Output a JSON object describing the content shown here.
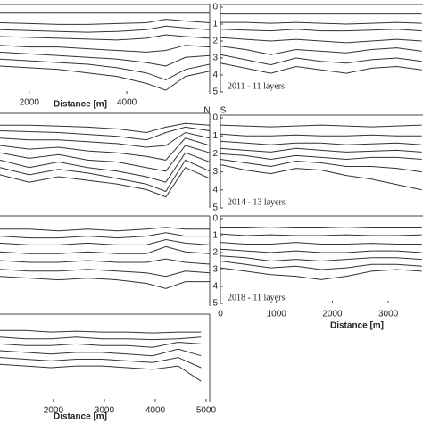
{
  "orientation_labels": [
    "N",
    "S"
  ],
  "chart_data": [
    {
      "type": "line",
      "color": "#333",
      "xlim": [
        1400,
        5700
      ],
      "ylim": [
        0,
        5
      ],
      "y_inverted": true,
      "xticks": [
        2000,
        4000
      ],
      "xlabel": "Distance [m]",
      "x": [
        1400,
        2000,
        2600,
        3200,
        3800,
        4400,
        4800,
        5200,
        5700
      ],
      "series": [
        {
          "values": [
            0.35,
            0.35,
            0.35,
            0.35,
            0.35,
            0.35,
            0.35,
            0.35,
            0.35
          ]
        },
        {
          "values": [
            0.9,
            0.95,
            1.0,
            1.0,
            0.95,
            0.9,
            0.7,
            0.8,
            0.9
          ]
        },
        {
          "values": [
            1.3,
            1.35,
            1.4,
            1.45,
            1.4,
            1.3,
            1.1,
            1.2,
            1.3
          ]
        },
        {
          "values": [
            1.7,
            1.75,
            1.8,
            1.85,
            1.9,
            1.8,
            1.6,
            1.7,
            1.8
          ]
        },
        {
          "values": [
            2.2,
            2.3,
            2.3,
            2.4,
            2.5,
            2.6,
            2.5,
            2.2,
            2.3
          ]
        },
        {
          "values": [
            2.6,
            2.7,
            2.8,
            2.9,
            3.0,
            3.2,
            3.4,
            2.9,
            2.8
          ]
        },
        {
          "values": [
            3.0,
            3.1,
            3.2,
            3.3,
            3.5,
            3.8,
            4.2,
            3.6,
            3.3
          ]
        },
        {
          "values": [
            3.4,
            3.5,
            3.6,
            3.8,
            4.0,
            4.4,
            4.8,
            4.0,
            3.7
          ]
        }
      ]
    },
    {
      "type": "line",
      "color": "#333",
      "xlim": [
        0,
        3620
      ],
      "ylim": [
        0,
        5
      ],
      "y_inverted": true,
      "yticks": [
        0,
        1,
        2,
        3,
        4,
        5
      ],
      "annotation": "2011 - 11 layers",
      "x": [
        0,
        450,
        900,
        1350,
        1800,
        2250,
        2700,
        3150,
        3600
      ],
      "series": [
        {
          "values": [
            0.4,
            0.4,
            0.4,
            0.4,
            0.4,
            0.4,
            0.4,
            0.4,
            0.4
          ]
        },
        {
          "values": [
            0.9,
            0.9,
            0.95,
            0.9,
            0.95,
            1.0,
            0.95,
            0.9,
            0.95
          ]
        },
        {
          "values": [
            1.3,
            1.35,
            1.4,
            1.3,
            1.4,
            1.4,
            1.35,
            1.3,
            1.4
          ]
        },
        {
          "values": [
            1.8,
            1.9,
            2.0,
            1.9,
            2.0,
            2.1,
            2.0,
            1.9,
            2.0
          ]
        },
        {
          "values": [
            2.3,
            2.5,
            2.8,
            2.5,
            2.6,
            2.7,
            2.5,
            2.4,
            2.6
          ]
        },
        {
          "values": [
            2.8,
            3.1,
            3.4,
            3.0,
            3.2,
            3.3,
            3.1,
            3.0,
            3.2
          ]
        },
        {
          "values": [
            3.3,
            3.6,
            3.9,
            3.5,
            3.7,
            3.9,
            3.6,
            3.5,
            3.7
          ]
        }
      ]
    },
    {
      "type": "line",
      "color": "#333",
      "xlim": [
        1400,
        5700
      ],
      "ylim": [
        0,
        5
      ],
      "y_inverted": true,
      "x": [
        1400,
        2000,
        2600,
        3200,
        3800,
        4400,
        4800,
        5200,
        5700
      ],
      "series": [
        {
          "values": [
            0.5,
            0.5,
            0.55,
            0.6,
            0.7,
            0.9,
            0.6,
            0.4,
            0.5
          ]
        },
        {
          "values": [
            0.8,
            0.85,
            0.9,
            1.0,
            1.1,
            1.3,
            0.9,
            0.6,
            0.8
          ]
        },
        {
          "values": [
            1.2,
            1.3,
            1.3,
            1.4,
            1.5,
            1.7,
            1.6,
            0.9,
            1.2
          ]
        },
        {
          "values": [
            1.6,
            1.8,
            1.7,
            1.9,
            2.0,
            2.2,
            2.4,
            1.2,
            1.6
          ]
        },
        {
          "values": [
            2.0,
            2.3,
            2.1,
            2.4,
            2.5,
            2.8,
            3.0,
            1.6,
            2.0
          ]
        },
        {
          "values": [
            2.4,
            2.8,
            2.5,
            2.8,
            3.0,
            3.3,
            3.6,
            2.0,
            2.5
          ]
        },
        {
          "values": [
            2.8,
            3.2,
            2.9,
            3.1,
            3.4,
            3.7,
            4.1,
            2.4,
            3.0
          ]
        },
        {
          "values": [
            3.2,
            3.6,
            3.3,
            3.5,
            3.7,
            4.0,
            4.4,
            2.8,
            3.4
          ]
        }
      ]
    },
    {
      "type": "line",
      "color": "#333",
      "xlim": [
        0,
        3620
      ],
      "ylim": [
        0,
        5
      ],
      "y_inverted": true,
      "yticks": [
        0,
        1,
        2,
        3,
        4,
        5
      ],
      "annotation": "2014 - 13 layers",
      "x": [
        0,
        450,
        900,
        1350,
        1800,
        2250,
        2700,
        3150,
        3600
      ],
      "series": [
        {
          "values": [
            0.4,
            0.45,
            0.5,
            0.45,
            0.4,
            0.45,
            0.5,
            0.45,
            0.4
          ]
        },
        {
          "values": [
            0.9,
            1.0,
            1.0,
            0.95,
            1.0,
            1.0,
            0.95,
            1.0,
            1.0
          ]
        },
        {
          "values": [
            1.3,
            1.4,
            1.5,
            1.4,
            1.4,
            1.5,
            1.45,
            1.4,
            1.5
          ]
        },
        {
          "values": [
            1.7,
            1.8,
            1.9,
            1.7,
            1.8,
            1.9,
            1.85,
            1.8,
            1.9
          ]
        },
        {
          "values": [
            2.0,
            2.1,
            2.3,
            2.1,
            2.2,
            2.3,
            2.2,
            2.2,
            2.3
          ]
        },
        {
          "values": [
            2.3,
            2.5,
            2.7,
            2.4,
            2.5,
            2.7,
            2.7,
            2.8,
            3.0
          ]
        },
        {
          "values": [
            2.6,
            2.9,
            3.1,
            2.8,
            2.9,
            3.2,
            3.4,
            3.7,
            4.0
          ]
        }
      ]
    },
    {
      "type": "line",
      "color": "#333",
      "xlim": [
        1400,
        5700
      ],
      "ylim": [
        0,
        5
      ],
      "y_inverted": true,
      "x": [
        1400,
        2000,
        2600,
        3200,
        3800,
        4400,
        4800,
        5200,
        5700
      ],
      "series": [
        {
          "values": [
            0.6,
            0.6,
            0.7,
            0.6,
            0.7,
            0.6,
            0.5,
            0.6,
            0.6
          ]
        },
        {
          "values": [
            1.0,
            1.1,
            1.1,
            1.0,
            1.1,
            1.0,
            0.8,
            1.0,
            1.0
          ]
        },
        {
          "values": [
            1.4,
            1.5,
            1.5,
            1.4,
            1.5,
            1.5,
            1.2,
            1.4,
            1.5
          ]
        },
        {
          "values": [
            1.9,
            2.0,
            2.0,
            1.9,
            2.0,
            2.0,
            1.6,
            1.9,
            2.0
          ]
        },
        {
          "values": [
            2.4,
            2.5,
            2.5,
            2.4,
            2.5,
            2.5,
            2.3,
            2.5,
            2.6
          ]
        },
        {
          "values": [
            2.9,
            3.0,
            3.0,
            2.9,
            3.0,
            3.1,
            3.3,
            3.0,
            3.1
          ]
        },
        {
          "values": [
            3.3,
            3.4,
            3.5,
            3.4,
            3.5,
            3.7,
            4.0,
            3.6,
            3.6
          ]
        }
      ]
    },
    {
      "type": "line",
      "color": "#333",
      "xlim": [
        0,
        3620
      ],
      "ylim": [
        0,
        5
      ],
      "y_inverted": true,
      "yticks": [
        0,
        1,
        2,
        3,
        4,
        5
      ],
      "xticks": [
        0,
        1000,
        2000,
        3000
      ],
      "xlabel": "Distance [m]",
      "annotation": "2018 - 11 layers",
      "x": [
        0,
        450,
        900,
        1350,
        1800,
        2250,
        2700,
        3150,
        3600
      ],
      "series": [
        {
          "values": [
            0.5,
            0.5,
            0.55,
            0.5,
            0.5,
            0.55,
            0.5,
            0.5,
            0.5
          ]
        },
        {
          "values": [
            0.9,
            1.0,
            0.95,
            1.0,
            1.0,
            0.95,
            1.0,
            1.0,
            0.95
          ]
        },
        {
          "values": [
            1.4,
            1.5,
            1.5,
            1.4,
            1.5,
            1.5,
            1.45,
            1.5,
            1.5
          ]
        },
        {
          "values": [
            1.8,
            1.9,
            2.0,
            1.9,
            2.0,
            2.0,
            1.9,
            1.9,
            2.0
          ]
        },
        {
          "values": [
            2.2,
            2.3,
            2.5,
            2.4,
            2.5,
            2.4,
            2.3,
            2.3,
            2.4
          ]
        },
        {
          "values": [
            2.5,
            2.7,
            2.9,
            2.8,
            3.0,
            2.9,
            2.7,
            2.7,
            2.8
          ]
        },
        {
          "values": [
            2.9,
            3.1,
            3.3,
            3.4,
            3.6,
            3.4,
            3.1,
            3.0,
            3.1
          ]
        }
      ]
    },
    {
      "type": "line",
      "color": "#333",
      "xlim": [
        950,
        5070
      ],
      "ylim": [
        0,
        5
      ],
      "y_inverted": true,
      "xticks": [
        2000,
        3000,
        4000,
        5000
      ],
      "xlabel": "Distance [m]",
      "x": [
        950,
        1450,
        1950,
        2450,
        2950,
        3450,
        3950,
        4450,
        4900
      ],
      "series": [
        {
          "values": [
            0.8,
            0.8,
            0.9,
            0.85,
            0.9,
            0.9,
            0.95,
            0.9,
            0.9
          ]
        },
        {
          "values": [
            1.2,
            1.3,
            1.3,
            1.2,
            1.3,
            1.3,
            1.35,
            1.3,
            1.2
          ]
        },
        {
          "values": [
            1.6,
            1.7,
            1.7,
            1.6,
            1.7,
            1.7,
            1.8,
            1.5,
            1.6
          ]
        },
        {
          "values": [
            2.0,
            2.1,
            2.2,
            2.1,
            2.1,
            2.2,
            2.3,
            1.9,
            2.3
          ]
        },
        {
          "values": [
            2.4,
            2.5,
            2.6,
            2.5,
            2.5,
            2.6,
            2.7,
            2.4,
            3.0
          ]
        },
        {
          "values": [
            2.8,
            2.9,
            3.0,
            2.9,
            2.9,
            3.0,
            3.1,
            2.9,
            3.8
          ]
        }
      ]
    }
  ]
}
